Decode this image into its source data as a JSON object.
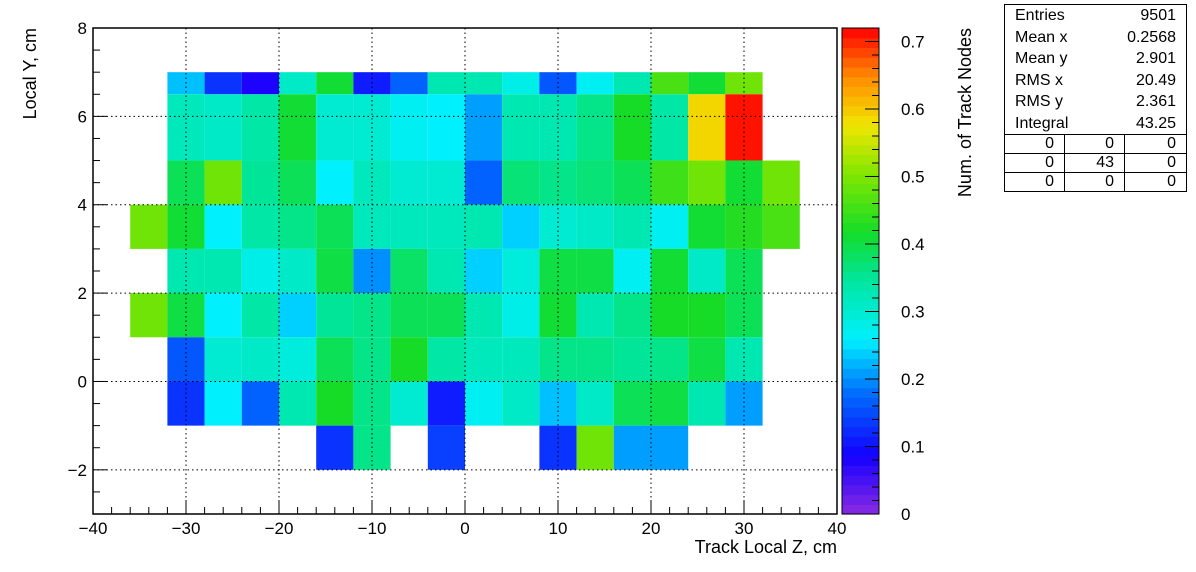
{
  "chart_data": {
    "type": "heatmap",
    "xlabel": "Track Local Z, cm",
    "ylabel": "Local Y, cm",
    "zlabel": "Num. of Track Nodes",
    "xlim": [
      -40,
      40
    ],
    "ylim": [
      -3,
      8
    ],
    "zlim": [
      0,
      0.72
    ],
    "x_ticks": [
      -40,
      -30,
      -20,
      -10,
      0,
      10,
      20,
      30,
      40
    ],
    "y_ticks": [
      -2,
      0,
      2,
      4,
      6,
      8
    ],
    "z_ticks": [
      0,
      0.1,
      0.2,
      0.3,
      0.4,
      0.5,
      0.6,
      0.7
    ],
    "x_bin_edges": [
      -36,
      -32,
      -28,
      -24,
      -20,
      -16,
      -12,
      -8,
      -4,
      0,
      4,
      8,
      12,
      16,
      20,
      24,
      28,
      32,
      36
    ],
    "y_bin_edges": [
      -2,
      -1,
      1,
      3,
      5,
      7
    ],
    "cells": [
      {
        "x": -30,
        "y": 6,
        "z": 0.23
      },
      {
        "x": -26,
        "y": 6,
        "z": 0.13
      },
      {
        "x": -22,
        "y": 6,
        "z": 0.08
      },
      {
        "x": -18,
        "y": 6,
        "z": 0.31
      },
      {
        "x": -14,
        "y": 6,
        "z": 0.41
      },
      {
        "x": -10,
        "y": 6,
        "z": 0.11
      },
      {
        "x": -6,
        "y": 6,
        "z": 0.17
      },
      {
        "x": -2,
        "y": 6,
        "z": 0.33
      },
      {
        "x": 2,
        "y": 6,
        "z": 0.33
      },
      {
        "x": 6,
        "y": 6,
        "z": 0.28
      },
      {
        "x": 10,
        "y": 6,
        "z": 0.16
      },
      {
        "x": 14,
        "y": 6,
        "z": 0.27
      },
      {
        "x": 18,
        "y": 6,
        "z": 0.33
      },
      {
        "x": 22,
        "y": 6,
        "z": 0.46
      },
      {
        "x": 26,
        "y": 6,
        "z": 0.41
      },
      {
        "x": 30,
        "y": 6,
        "z": 0.49
      },
      {
        "x": -30,
        "y": 5.5,
        "z": 0.32
      },
      {
        "x": -26,
        "y": 5.5,
        "z": 0.31
      },
      {
        "x": -22,
        "y": 5.5,
        "z": 0.34
      },
      {
        "x": -18,
        "y": 5.5,
        "z": 0.41
      },
      {
        "x": -14,
        "y": 5.5,
        "z": 0.3
      },
      {
        "x": -10,
        "y": 5.5,
        "z": 0.3
      },
      {
        "x": -6,
        "y": 5.5,
        "z": 0.27
      },
      {
        "x": -2,
        "y": 5.5,
        "z": 0.26
      },
      {
        "x": 2,
        "y": 5.5,
        "z": 0.21
      },
      {
        "x": 6,
        "y": 5.5,
        "z": 0.33
      },
      {
        "x": 10,
        "y": 5.5,
        "z": 0.33
      },
      {
        "x": 14,
        "y": 5.5,
        "z": 0.36
      },
      {
        "x": 18,
        "y": 5.5,
        "z": 0.42
      },
      {
        "x": 22,
        "y": 5.5,
        "z": 0.34
      },
      {
        "x": 26,
        "y": 5.5,
        "z": 0.59
      },
      {
        "x": 30,
        "y": 5.5,
        "z": 0.71
      },
      {
        "x": -30,
        "y": 4.5,
        "z": 0.39
      },
      {
        "x": -26,
        "y": 4.5,
        "z": 0.49
      },
      {
        "x": -22,
        "y": 4.5,
        "z": 0.35
      },
      {
        "x": -18,
        "y": 4.5,
        "z": 0.39
      },
      {
        "x": -14,
        "y": 4.5,
        "z": 0.26
      },
      {
        "x": -10,
        "y": 4.5,
        "z": 0.32
      },
      {
        "x": -6,
        "y": 4.5,
        "z": 0.3
      },
      {
        "x": -2,
        "y": 4.5,
        "z": 0.3
      },
      {
        "x": 2,
        "y": 4.5,
        "z": 0.17
      },
      {
        "x": 6,
        "y": 4.5,
        "z": 0.37
      },
      {
        "x": 10,
        "y": 4.5,
        "z": 0.36
      },
      {
        "x": 14,
        "y": 4.5,
        "z": 0.37
      },
      {
        "x": 18,
        "y": 4.5,
        "z": 0.39
      },
      {
        "x": 22,
        "y": 4.5,
        "z": 0.45
      },
      {
        "x": 26,
        "y": 4.5,
        "z": 0.49
      },
      {
        "x": 30,
        "y": 4.5,
        "z": 0.41
      },
      {
        "x": 34,
        "y": 4.5,
        "z": 0.49
      },
      {
        "x": -34,
        "y": 3.5,
        "z": 0.49
      },
      {
        "x": -30,
        "y": 3.5,
        "z": 0.41
      },
      {
        "x": -26,
        "y": 3.5,
        "z": 0.26
      },
      {
        "x": -22,
        "y": 3.5,
        "z": 0.34
      },
      {
        "x": -18,
        "y": 3.5,
        "z": 0.36
      },
      {
        "x": -14,
        "y": 3.5,
        "z": 0.39
      },
      {
        "x": -10,
        "y": 3.5,
        "z": 0.32
      },
      {
        "x": -6,
        "y": 3.5,
        "z": 0.32
      },
      {
        "x": -2,
        "y": 3.5,
        "z": 0.32
      },
      {
        "x": 2,
        "y": 3.5,
        "z": 0.33
      },
      {
        "x": 6,
        "y": 3.5,
        "z": 0.24
      },
      {
        "x": 10,
        "y": 3.5,
        "z": 0.3
      },
      {
        "x": 14,
        "y": 3.5,
        "z": 0.31
      },
      {
        "x": 18,
        "y": 3.5,
        "z": 0.33
      },
      {
        "x": 22,
        "y": 3.5,
        "z": 0.27
      },
      {
        "x": 26,
        "y": 3.5,
        "z": 0.41
      },
      {
        "x": 30,
        "y": 3.5,
        "z": 0.43
      },
      {
        "x": 34,
        "y": 3.5,
        "z": 0.46
      },
      {
        "x": -30,
        "y": 2.5,
        "z": 0.33
      },
      {
        "x": -26,
        "y": 2.5,
        "z": 0.33
      },
      {
        "x": -22,
        "y": 2.5,
        "z": 0.28
      },
      {
        "x": -18,
        "y": 2.5,
        "z": 0.31
      },
      {
        "x": -14,
        "y": 2.5,
        "z": 0.4
      },
      {
        "x": -10,
        "y": 2.5,
        "z": 0.2
      },
      {
        "x": -6,
        "y": 2.5,
        "z": 0.38
      },
      {
        "x": -2,
        "y": 2.5,
        "z": 0.33
      },
      {
        "x": 2,
        "y": 2.5,
        "z": 0.24
      },
      {
        "x": 6,
        "y": 2.5,
        "z": 0.29
      },
      {
        "x": 10,
        "y": 2.5,
        "z": 0.4
      },
      {
        "x": 14,
        "y": 2.5,
        "z": 0.4
      },
      {
        "x": 18,
        "y": 2.5,
        "z": 0.27
      },
      {
        "x": 22,
        "y": 2.5,
        "z": 0.41
      },
      {
        "x": 26,
        "y": 2.5,
        "z": 0.31
      },
      {
        "x": 30,
        "y": 2.5,
        "z": 0.39
      },
      {
        "x": -34,
        "y": 1.5,
        "z": 0.49
      },
      {
        "x": -30,
        "y": 1.5,
        "z": 0.4
      },
      {
        "x": -26,
        "y": 1.5,
        "z": 0.26
      },
      {
        "x": -22,
        "y": 1.5,
        "z": 0.34
      },
      {
        "x": -18,
        "y": 1.5,
        "z": 0.24
      },
      {
        "x": -14,
        "y": 1.5,
        "z": 0.35
      },
      {
        "x": -10,
        "y": 1.5,
        "z": 0.36
      },
      {
        "x": -6,
        "y": 1.5,
        "z": 0.39
      },
      {
        "x": -2,
        "y": 1.5,
        "z": 0.39
      },
      {
        "x": 2,
        "y": 1.5,
        "z": 0.33
      },
      {
        "x": 6,
        "y": 1.5,
        "z": 0.28
      },
      {
        "x": 10,
        "y": 1.5,
        "z": 0.41
      },
      {
        "x": 14,
        "y": 1.5,
        "z": 0.33
      },
      {
        "x": 18,
        "y": 1.5,
        "z": 0.36
      },
      {
        "x": 22,
        "y": 1.5,
        "z": 0.42
      },
      {
        "x": 26,
        "y": 1.5,
        "z": 0.42
      },
      {
        "x": 30,
        "y": 1.5,
        "z": 0.39
      },
      {
        "x": -30,
        "y": 0.5,
        "z": 0.16
      },
      {
        "x": -26,
        "y": 0.5,
        "z": 0.3
      },
      {
        "x": -22,
        "y": 0.5,
        "z": 0.31
      },
      {
        "x": -18,
        "y": 0.5,
        "z": 0.29
      },
      {
        "x": -14,
        "y": 0.5,
        "z": 0.39
      },
      {
        "x": -10,
        "y": 0.5,
        "z": 0.36
      },
      {
        "x": -6,
        "y": 0.5,
        "z": 0.42
      },
      {
        "x": -2,
        "y": 0.5,
        "z": 0.34
      },
      {
        "x": 2,
        "y": 0.5,
        "z": 0.32
      },
      {
        "x": 6,
        "y": 0.5,
        "z": 0.32
      },
      {
        "x": 10,
        "y": 0.5,
        "z": 0.36
      },
      {
        "x": 14,
        "y": 0.5,
        "z": 0.36
      },
      {
        "x": 18,
        "y": 0.5,
        "z": 0.35
      },
      {
        "x": 22,
        "y": 0.5,
        "z": 0.36
      },
      {
        "x": 26,
        "y": 0.5,
        "z": 0.4
      },
      {
        "x": 30,
        "y": 0.5,
        "z": 0.33
      },
      {
        "x": -30,
        "y": -0.5,
        "z": 0.13
      },
      {
        "x": -26,
        "y": -0.5,
        "z": 0.26
      },
      {
        "x": -22,
        "y": -0.5,
        "z": 0.17
      },
      {
        "x": -18,
        "y": -0.5,
        "z": 0.33
      },
      {
        "x": -14,
        "y": -0.5,
        "z": 0.42
      },
      {
        "x": -10,
        "y": -0.5,
        "z": 0.36
      },
      {
        "x": -6,
        "y": -0.5,
        "z": 0.3
      },
      {
        "x": -2,
        "y": -0.5,
        "z": 0.11
      },
      {
        "x": 2,
        "y": -0.5,
        "z": 0.27
      },
      {
        "x": 6,
        "y": -0.5,
        "z": 0.31
      },
      {
        "x": 10,
        "y": -0.5,
        "z": 0.23
      },
      {
        "x": 14,
        "y": -0.5,
        "z": 0.31
      },
      {
        "x": 18,
        "y": -0.5,
        "z": 0.39
      },
      {
        "x": 22,
        "y": -0.5,
        "z": 0.4
      },
      {
        "x": 26,
        "y": -0.5,
        "z": 0.33
      },
      {
        "x": 30,
        "y": -0.5,
        "z": 0.21
      },
      {
        "x": -14,
        "y": -1.5,
        "z": 0.13
      },
      {
        "x": -10,
        "y": -1.5,
        "z": 0.36
      },
      {
        "x": -2,
        "y": -1.5,
        "z": 0.14
      },
      {
        "x": 10,
        "y": -1.5,
        "z": 0.13
      },
      {
        "x": 14,
        "y": -1.5,
        "z": 0.49
      },
      {
        "x": 18,
        "y": -1.5,
        "z": 0.21
      },
      {
        "x": 22,
        "y": -1.5,
        "z": 0.21
      }
    ]
  },
  "stats_box": {
    "rows": [
      {
        "label": "Entries",
        "value": "9501"
      },
      {
        "label": "Mean x",
        "value": "0.2568"
      },
      {
        "label": "Mean y",
        "value": "2.901"
      },
      {
        "label": "RMS x",
        "value": "20.49"
      },
      {
        "label": "RMS y",
        "value": "2.361"
      },
      {
        "label": "Integral",
        "value": "43.25"
      }
    ],
    "grid": [
      "0",
      "0",
      "0",
      "0",
      "43",
      "0",
      "0",
      "0",
      "0"
    ]
  }
}
